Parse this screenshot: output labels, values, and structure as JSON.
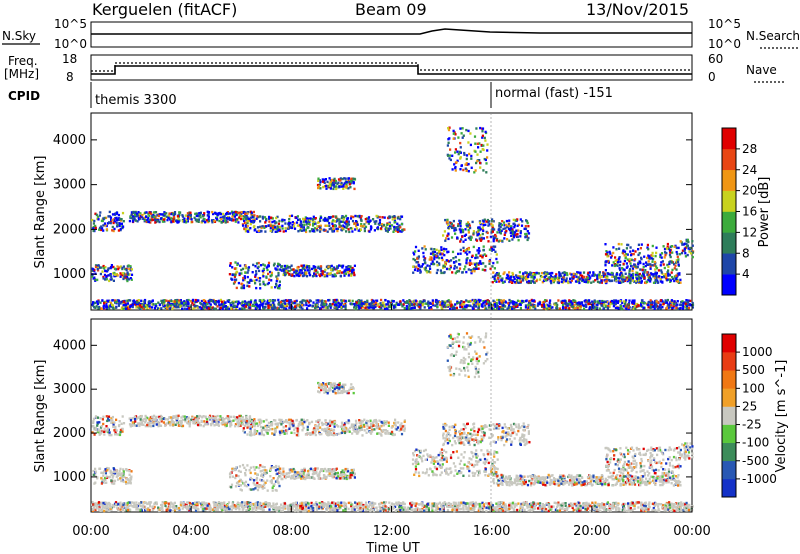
{
  "header": {
    "station": "Kerguelen (fitACF)",
    "beam": "Beam 09",
    "date": "13/Nov/2015"
  },
  "top_panels": {
    "nsky_label": "N.Sky",
    "nsky_ticks": [
      "10^5",
      "10^0"
    ],
    "nsearch_label": "N.Search",
    "nsearch_ticks": [
      "10^5",
      "10^0"
    ],
    "freq_label": "Freq.",
    "freq_unit": "[MHz]",
    "freq_ticks": [
      "18",
      "8"
    ],
    "nave_label": "Nave",
    "nave_ticks": [
      "60",
      "0"
    ],
    "cpid_label": "CPID",
    "cpid_modes": [
      "themis 3300",
      "normal (fast) -151"
    ]
  },
  "chart_data": [
    {
      "type": "heatmap",
      "panel": "power",
      "ylabel": "Slant Range [km]",
      "yticks": [
        "1000",
        "2000",
        "3000",
        "4000"
      ],
      "ylim": [
        200,
        4600
      ],
      "colorbar_label": "Power [dB]",
      "colorbar_ticks": [
        "4",
        "8",
        "12",
        "16",
        "20",
        "24",
        "28"
      ],
      "colorbar_colors": [
        "#0000ff",
        "#1e46a8",
        "#2e7d5a",
        "#3cab3c",
        "#c8d21e",
        "#f09614",
        "#e84614",
        "#e00000"
      ]
    },
    {
      "type": "heatmap",
      "panel": "velocity",
      "ylabel": "Slant Range [km]",
      "yticks": [
        "1000",
        "2000",
        "3000",
        "4000"
      ],
      "ylim": [
        200,
        4600
      ],
      "colorbar_label": "Velocity [m s^-1]",
      "colorbar_ticks": [
        "1000",
        "500",
        "100",
        "25",
        "-25",
        "-100",
        "-500",
        "-1000"
      ],
      "colorbar_colors": [
        "#1432c8",
        "#2858b4",
        "#3c8c5a",
        "#5ac83c",
        "#c8c8c0",
        "#f0a028",
        "#f07814",
        "#e83c14",
        "#e00000"
      ]
    }
  ],
  "time_axis": {
    "xlabel": "Time UT",
    "xticks": [
      "00:00",
      "04:00",
      "08:00",
      "12:00",
      "16:00",
      "20:00",
      "00:00"
    ]
  }
}
